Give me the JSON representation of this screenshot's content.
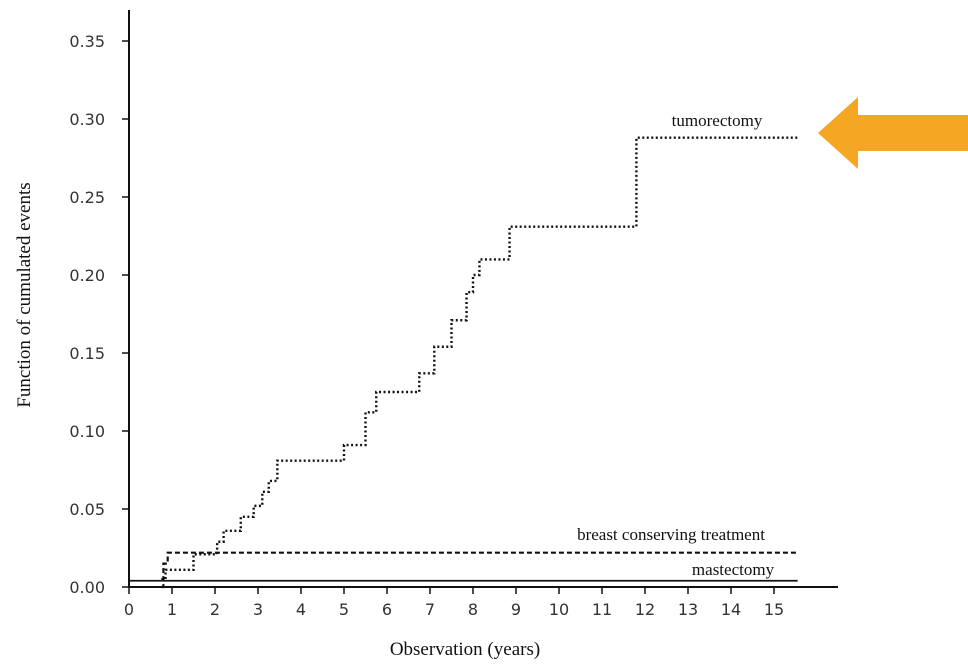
{
  "chart_data": {
    "type": "line",
    "xlabel": "Observation (years)",
    "ylabel": "Function of cumulated events",
    "xlim": [
      0,
      16
    ],
    "ylim": [
      0,
      0.37
    ],
    "x_ticks": [
      "0",
      "1",
      "2",
      "3",
      "4",
      "5",
      "6",
      "7",
      "8",
      "9",
      "10",
      "11",
      "12",
      "13",
      "14",
      "15"
    ],
    "y_ticks": [
      "0.00",
      "0.05",
      "0.10",
      "0.15",
      "0.20",
      "0.25",
      "0.30",
      "0.35"
    ],
    "grid": false,
    "series": [
      {
        "name": "tumorectomy",
        "style": "dotted",
        "x": [
          0.75,
          0.85,
          1.0,
          1.5,
          1.8,
          2.05,
          2.2,
          2.6,
          2.9,
          3.1,
          3.25,
          3.45,
          5.0,
          5.5,
          5.75,
          6.75,
          7.1,
          7.5,
          7.85,
          8.0,
          8.15,
          8.85,
          11.8,
          15.55
        ],
        "y": [
          0.005,
          0.011,
          0.011,
          0.021,
          0.021,
          0.029,
          0.036,
          0.045,
          0.052,
          0.061,
          0.068,
          0.081,
          0.091,
          0.112,
          0.125,
          0.137,
          0.154,
          0.171,
          0.189,
          0.2,
          0.21,
          0.231,
          0.288,
          0.288
        ]
      },
      {
        "name": "breast conserving treatment",
        "style": "dashed",
        "x": [
          0.75,
          0.8,
          0.9,
          15.55
        ],
        "y": [
          0.0,
          0.015,
          0.022,
          0.022
        ]
      },
      {
        "name": "mastectomy",
        "style": "solid",
        "x": [
          0.0,
          15.55
        ],
        "y": [
          0.004,
          0.004
        ]
      }
    ],
    "annotation": {
      "type": "arrow",
      "color": "#F5A623",
      "points_to": "tumorectomy"
    }
  }
}
